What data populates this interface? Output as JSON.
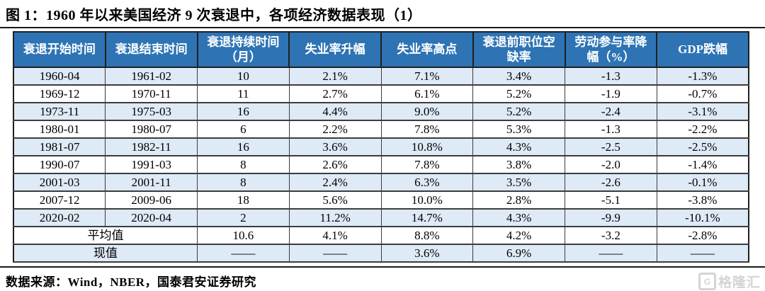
{
  "title": "图 1：1960 年以来美国经济 9 次衰退中，各项经济数据表现（1）",
  "table": {
    "columns": [
      "衰退开始时间",
      "衰退结束时间",
      "衰退持续时间（月）",
      "失业率升幅",
      "失业率高点",
      "衰退前职位空缺率",
      "劳动参与率降幅（%）",
      "GDP跌幅"
    ],
    "rows": [
      [
        "1960-04",
        "1961-02",
        "10",
        "2.1%",
        "7.1%",
        "3.4%",
        "-1.3",
        "-1.3%"
      ],
      [
        "1969-12",
        "1970-11",
        "11",
        "2.7%",
        "6.1%",
        "5.2%",
        "-1.9",
        "-0.7%"
      ],
      [
        "1973-11",
        "1975-03",
        "16",
        "4.4%",
        "9.0%",
        "5.2%",
        "-2.4",
        "-3.1%"
      ],
      [
        "1980-01",
        "1980-07",
        "6",
        "2.2%",
        "7.8%",
        "5.3%",
        "-1.3",
        "-2.2%"
      ],
      [
        "1981-07",
        "1982-11",
        "16",
        "3.6%",
        "10.8%",
        "4.3%",
        "-2.5",
        "-2.5%"
      ],
      [
        "1990-07",
        "1991-03",
        "8",
        "2.6%",
        "7.8%",
        "3.8%",
        "-2.0",
        "-1.4%"
      ],
      [
        "2001-03",
        "2001-11",
        "8",
        "2.4%",
        "6.3%",
        "3.5%",
        "-2.6",
        "-0.1%"
      ],
      [
        "2007-12",
        "2009-06",
        "18",
        "5.6%",
        "10.0%",
        "2.8%",
        "-5.1",
        "-3.8%"
      ],
      [
        "2020-02",
        "2020-04",
        "2",
        "11.2%",
        "14.7%",
        "4.3%",
        "-9.9",
        "-10.1%"
      ]
    ],
    "summary_rows": [
      {
        "label": "平均值",
        "values": [
          "10.6",
          "4.1%",
          "8.8%",
          "4.2%",
          "-3.2",
          "-2.8%"
        ]
      },
      {
        "label": "现值",
        "values": [
          "——",
          "——",
          "3.6%",
          "6.9%",
          "——",
          "——"
        ]
      }
    ]
  },
  "footer": {
    "source_note": "数据来源：Wind，NBER，国泰君安证券研究"
  },
  "watermark": {
    "icon_letter": "G",
    "text": "格隆汇"
  },
  "colors": {
    "header_bg": "#2E74B5",
    "header_text": "#FFFFFF",
    "band_row_bg": "#DEEAF6",
    "plain_row_bg": "#FFFFFF",
    "border": "#3C3C3C",
    "title_text": "#000000",
    "watermark_gray": "#D4D4D4"
  }
}
